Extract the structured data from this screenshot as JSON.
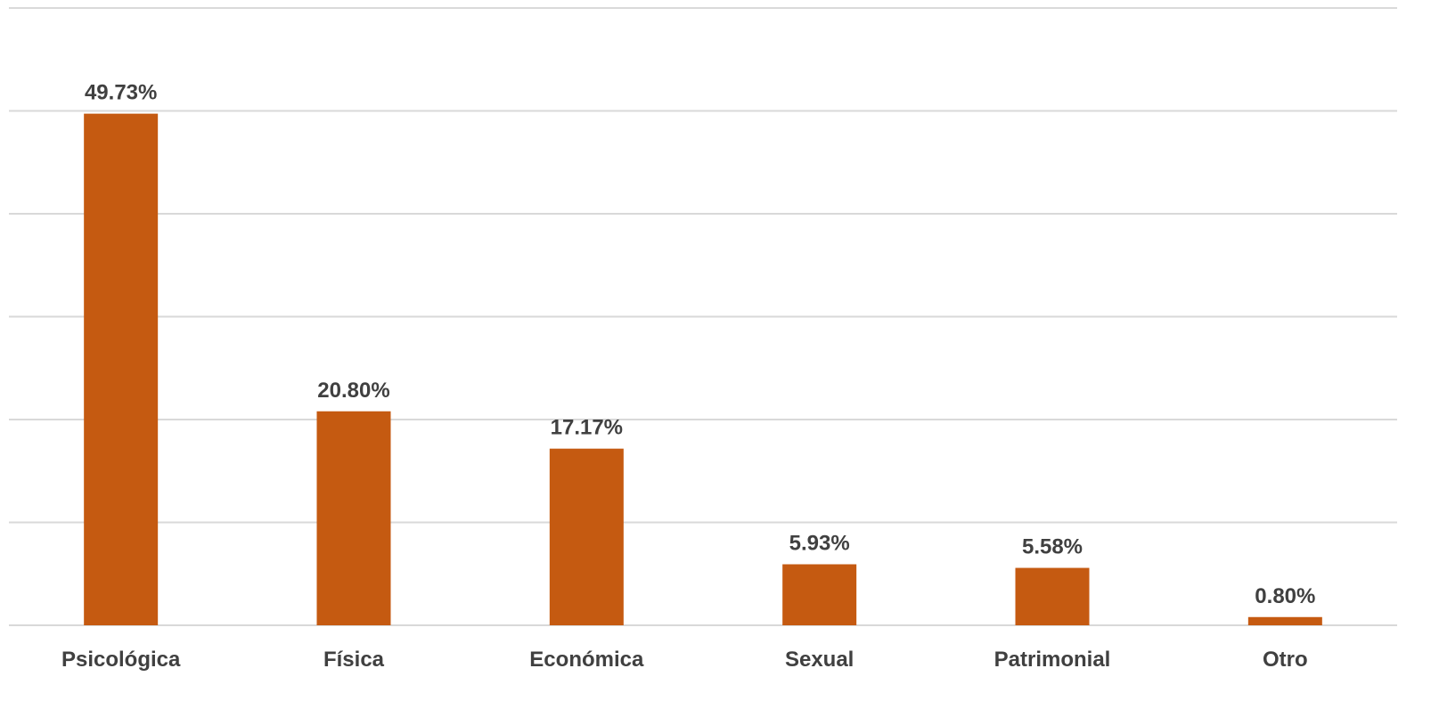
{
  "chart_data": {
    "type": "bar",
    "categories": [
      "Psicológica",
      "Física",
      "Económica",
      "Sexual",
      "Patrimonial",
      "Otro"
    ],
    "values": [
      49.73,
      20.8,
      17.17,
      5.93,
      5.58,
      0.8
    ],
    "value_labels": [
      "49.73%",
      "20.80%",
      "17.17%",
      "5.93%",
      "5.58%",
      "0.80%"
    ],
    "title": "",
    "xlabel": "",
    "ylabel": "",
    "ylim": [
      0,
      60
    ],
    "y_tick_step": 10,
    "y_tick_labels_shown": false,
    "grid": true,
    "legend": "none",
    "colors": {
      "bar": "#c55a11",
      "grid": "#d9d9d9",
      "text": "#404040"
    }
  }
}
